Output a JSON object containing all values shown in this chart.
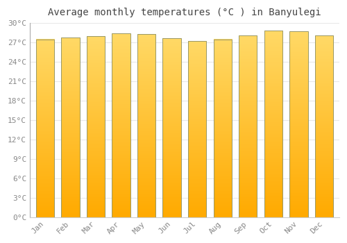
{
  "title": "Average monthly temperatures (°C ) in Banyulegi",
  "months": [
    "Jan",
    "Feb",
    "Mar",
    "Apr",
    "May",
    "Jun",
    "Jul",
    "Aug",
    "Sep",
    "Oct",
    "Nov",
    "Dec"
  ],
  "values": [
    27.5,
    27.8,
    28.0,
    28.4,
    28.3,
    27.7,
    27.2,
    27.5,
    28.1,
    28.8,
    28.7,
    28.1
  ],
  "bar_color_bottom": "#FFAA00",
  "bar_color_top": "#FFD966",
  "bar_edge_color": "#999966",
  "background_color": "#FFFFFF",
  "plot_bg_color": "#FFFFFF",
  "grid_color": "#E8E8E8",
  "tick_label_color": "#888888",
  "title_color": "#444444",
  "ylim": [
    0,
    30
  ],
  "yticks": [
    0,
    3,
    6,
    9,
    12,
    15,
    18,
    21,
    24,
    27,
    30
  ],
  "ytick_labels": [
    "0°C",
    "3°C",
    "6°C",
    "9°C",
    "12°C",
    "15°C",
    "18°C",
    "21°C",
    "24°C",
    "27°C",
    "30°C"
  ],
  "title_fontsize": 10,
  "tick_fontsize": 8
}
